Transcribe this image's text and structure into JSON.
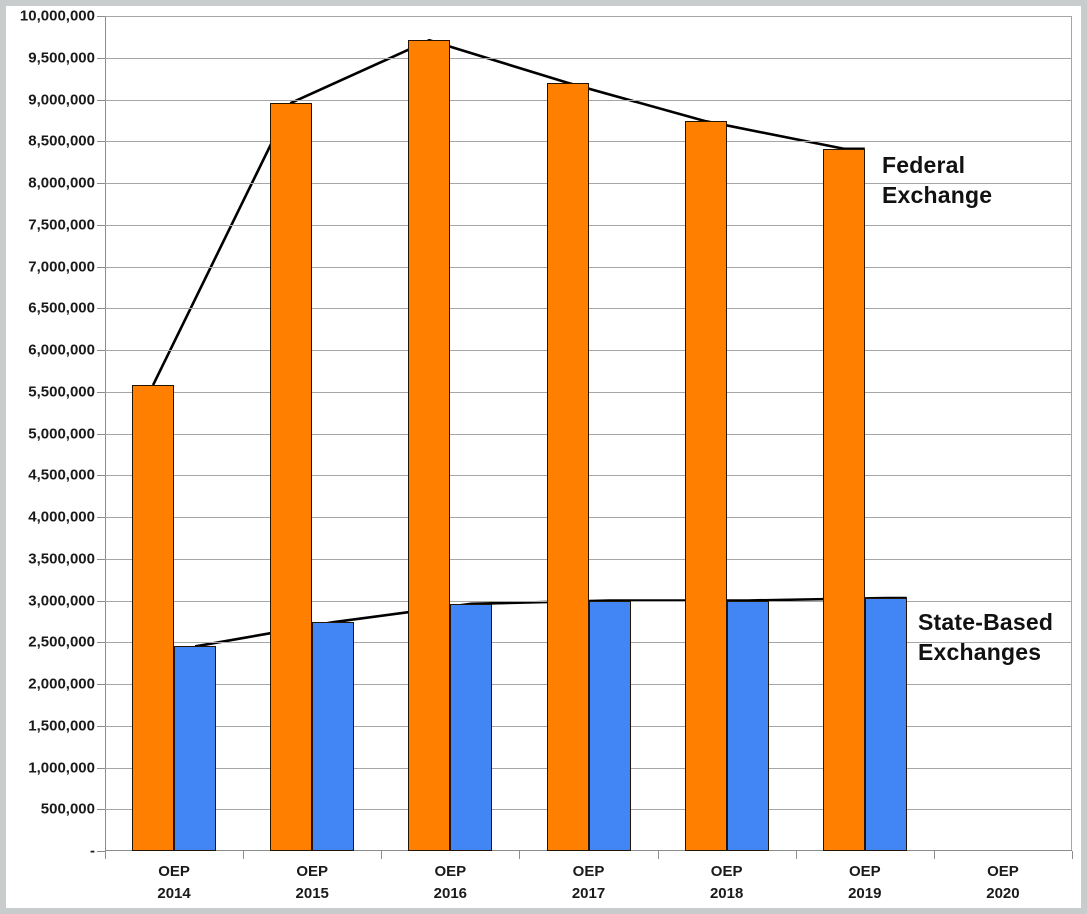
{
  "chart_data": {
    "type": "bar",
    "title": "",
    "categories": [
      {
        "top": "OEP",
        "bottom": "2014"
      },
      {
        "top": "OEP",
        "bottom": "2015"
      },
      {
        "top": "OEP",
        "bottom": "2016"
      },
      {
        "top": "OEP",
        "bottom": "2017"
      },
      {
        "top": "OEP",
        "bottom": "2018"
      },
      {
        "top": "OEP",
        "bottom": "2019"
      },
      {
        "top": "OEP",
        "bottom": "2020"
      }
    ],
    "series": [
      {
        "name": "Federal Exchange",
        "color": "#FF8000",
        "values": [
          5580000,
          8960000,
          9710000,
          9200000,
          8740000,
          8410000,
          null
        ]
      },
      {
        "name": "State-Based Exchanges",
        "color": "#4285F4",
        "values": [
          2450000,
          2740000,
          2960000,
          3000000,
          3000000,
          3030000,
          null
        ]
      }
    ],
    "trend_lines": {
      "color": "#000000",
      "width": 2.6
    },
    "ylim": [
      0,
      10000000
    ],
    "ytick_step": 500000,
    "ytick_labels": [
      "-",
      "500,000",
      "1,000,000",
      "1,500,000",
      "2,000,000",
      "2,500,000",
      "3,000,000",
      "3,500,000",
      "4,000,000",
      "4,500,000",
      "5,000,000",
      "5,500,000",
      "6,000,000",
      "6,500,000",
      "7,000,000",
      "7,500,000",
      "8,000,000",
      "8,500,000",
      "9,000,000",
      "9,500,000",
      "10,000,000"
    ],
    "grid": true,
    "legend_position": "inline-annotations"
  },
  "annotations": {
    "federal": "Federal\nExchange",
    "state": "State-Based\nExchanges"
  },
  "colors": {
    "federal_bar": "#FF8000",
    "state_bar": "#4285F4",
    "bar_border": "#241503",
    "gridline": "#A6A6A6",
    "axis": "#8C8C8C",
    "trend_line": "#000000",
    "frame_border": "#C9CCCD",
    "background": "#FFFFFF"
  }
}
